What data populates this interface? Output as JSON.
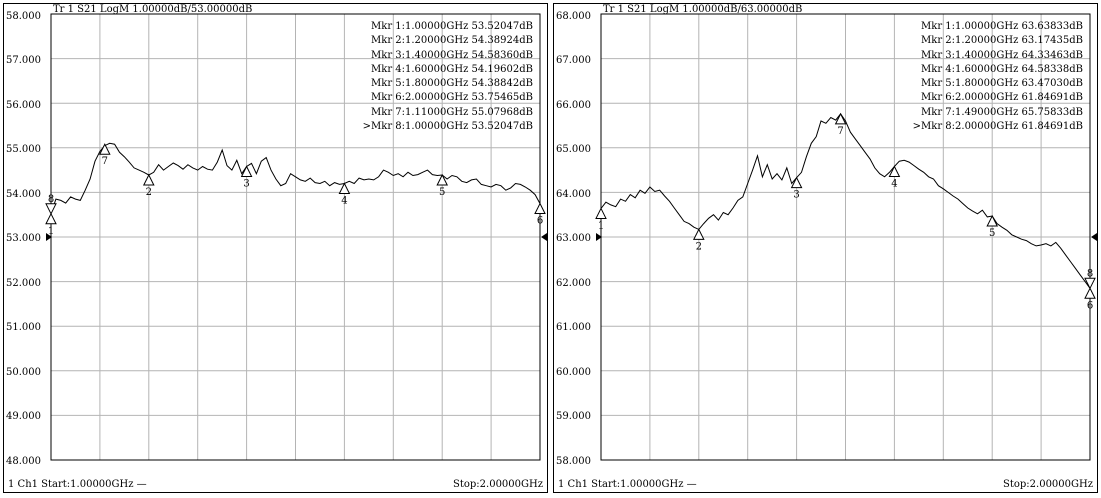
{
  "colors": {
    "trace": "#000000",
    "grid": "#b4b4b4",
    "frame": "#000000",
    "background": "#ffffff"
  },
  "chart_data": [
    {
      "type": "line",
      "header": "Tr 1  S21 LogM 1.00000dB/53.00000dB",
      "ylim": [
        48,
        58
      ],
      "xlim": [
        1.0,
        2.0
      ],
      "x_unit": "GHz",
      "y_unit": "dB",
      "grid": true,
      "yticks": [
        "58.000",
        "57.000",
        "56.000",
        "55.000",
        "54.000",
        "53.000",
        "52.000",
        "51.000",
        "50.000",
        "49.000",
        "48.000"
      ],
      "reference_level": 53.0,
      "footer_left": "1  Ch1  Start:1.00000GHz  —",
      "footer_right": "Stop:2.00000GHz",
      "x": [
        1.0,
        1.01,
        1.02,
        1.03,
        1.04,
        1.05,
        1.06,
        1.07,
        1.08,
        1.09,
        1.1,
        1.11,
        1.12,
        1.13,
        1.14,
        1.15,
        1.16,
        1.17,
        1.18,
        1.19,
        1.2,
        1.21,
        1.22,
        1.23,
        1.24,
        1.25,
        1.26,
        1.27,
        1.28,
        1.29,
        1.3,
        1.31,
        1.32,
        1.33,
        1.34,
        1.35,
        1.36,
        1.37,
        1.38,
        1.39,
        1.4,
        1.41,
        1.42,
        1.43,
        1.44,
        1.45,
        1.46,
        1.47,
        1.48,
        1.49,
        1.5,
        1.51,
        1.52,
        1.53,
        1.54,
        1.55,
        1.56,
        1.57,
        1.58,
        1.59,
        1.6,
        1.61,
        1.62,
        1.63,
        1.64,
        1.65,
        1.66,
        1.67,
        1.68,
        1.69,
        1.7,
        1.71,
        1.72,
        1.73,
        1.74,
        1.75,
        1.76,
        1.77,
        1.78,
        1.79,
        1.8,
        1.81,
        1.82,
        1.83,
        1.84,
        1.85,
        1.86,
        1.87,
        1.88,
        1.89,
        1.9,
        1.91,
        1.92,
        1.93,
        1.94,
        1.95,
        1.96,
        1.97,
        1.98,
        1.99,
        2.0
      ],
      "y": [
        53.52,
        53.85,
        53.82,
        53.76,
        53.9,
        53.85,
        53.82,
        54.05,
        54.3,
        54.7,
        54.92,
        55.05,
        55.1,
        55.08,
        54.9,
        54.8,
        54.68,
        54.55,
        54.5,
        54.45,
        54.39,
        54.45,
        54.62,
        54.5,
        54.58,
        54.66,
        54.6,
        54.52,
        54.62,
        54.55,
        54.5,
        54.58,
        54.52,
        54.5,
        54.68,
        54.95,
        54.6,
        54.5,
        54.72,
        54.42,
        54.58,
        54.65,
        54.42,
        54.7,
        54.78,
        54.5,
        54.3,
        54.15,
        54.2,
        54.42,
        54.35,
        54.28,
        54.25,
        54.32,
        54.22,
        54.2,
        54.25,
        54.15,
        54.22,
        54.18,
        54.2,
        54.25,
        54.2,
        54.32,
        54.28,
        54.3,
        54.28,
        54.35,
        54.5,
        54.45,
        54.38,
        54.42,
        54.35,
        54.45,
        54.38,
        54.4,
        54.45,
        54.5,
        54.4,
        54.38,
        54.39,
        54.3,
        54.38,
        54.35,
        54.25,
        54.22,
        54.28,
        54.3,
        54.18,
        54.15,
        54.12,
        54.18,
        54.15,
        54.05,
        54.1,
        54.2,
        54.18,
        54.12,
        54.05,
        53.95,
        53.75
      ],
      "markers": [
        {
          "num": "1",
          "x": 1.0,
          "y": 53.52,
          "pos": "below"
        },
        {
          "num": "2",
          "x": 1.2,
          "y": 54.39,
          "pos": "below"
        },
        {
          "num": "3",
          "x": 1.4,
          "y": 54.58,
          "pos": "below"
        },
        {
          "num": "4",
          "x": 1.6,
          "y": 54.2,
          "pos": "below"
        },
        {
          "num": "5",
          "x": 1.8,
          "y": 54.39,
          "pos": "below"
        },
        {
          "num": "6",
          "x": 2.0,
          "y": 53.75,
          "pos": "below"
        },
        {
          "num": "7",
          "x": 1.11,
          "y": 55.08,
          "pos": "below"
        },
        {
          "num": "8",
          "x": 1.0,
          "y": 53.52,
          "pos": "above"
        }
      ],
      "marker_table": [
        "Mkr 1:1.00000GHz 53.52047dB",
        "Mkr 2:1.20000GHz 54.38924dB",
        "Mkr 3:1.40000GHz 54.58360dB",
        "Mkr 4:1.60000GHz 54.19602dB",
        "Mkr 5:1.80000GHz 54.38842dB",
        "Mkr 6:2.00000GHz 53.75465dB",
        "Mkr 7:1.11000GHz 55.07968dB",
        ">Mkr 8:1.00000GHz 53.52047dB"
      ]
    },
    {
      "type": "line",
      "header": "Tr 1  S21 LogM 1.00000dB/63.00000dB",
      "ylim": [
        58,
        68
      ],
      "xlim": [
        1.0,
        2.0
      ],
      "x_unit": "GHz",
      "y_unit": "dB",
      "grid": true,
      "yticks": [
        "68.000",
        "67.000",
        "66.000",
        "65.000",
        "64.000",
        "63.000",
        "62.000",
        "61.000",
        "60.000",
        "59.000",
        "58.000"
      ],
      "reference_level": 63.0,
      "footer_left": "1  Ch1  Start:1.00000GHz  —",
      "footer_right": "Stop:2.00000GHz",
      "x": [
        1.0,
        1.01,
        1.02,
        1.03,
        1.04,
        1.05,
        1.06,
        1.07,
        1.08,
        1.09,
        1.1,
        1.11,
        1.12,
        1.13,
        1.14,
        1.15,
        1.16,
        1.17,
        1.18,
        1.19,
        1.2,
        1.21,
        1.22,
        1.23,
        1.24,
        1.25,
        1.26,
        1.27,
        1.28,
        1.29,
        1.3,
        1.31,
        1.32,
        1.33,
        1.34,
        1.35,
        1.36,
        1.37,
        1.38,
        1.39,
        1.4,
        1.41,
        1.42,
        1.43,
        1.44,
        1.45,
        1.46,
        1.47,
        1.48,
        1.49,
        1.5,
        1.51,
        1.52,
        1.53,
        1.54,
        1.55,
        1.56,
        1.57,
        1.58,
        1.59,
        1.6,
        1.61,
        1.62,
        1.63,
        1.64,
        1.65,
        1.66,
        1.67,
        1.68,
        1.69,
        1.7,
        1.71,
        1.72,
        1.73,
        1.74,
        1.75,
        1.76,
        1.77,
        1.78,
        1.79,
        1.8,
        1.81,
        1.82,
        1.83,
        1.84,
        1.85,
        1.86,
        1.87,
        1.88,
        1.89,
        1.9,
        1.91,
        1.92,
        1.93,
        1.94,
        1.95,
        1.96,
        1.97,
        1.98,
        1.99,
        2.0
      ],
      "y": [
        63.64,
        63.78,
        63.72,
        63.68,
        63.85,
        63.8,
        63.95,
        63.88,
        64.05,
        63.98,
        64.12,
        64.02,
        64.05,
        63.92,
        63.8,
        63.65,
        63.5,
        63.35,
        63.3,
        63.22,
        63.17,
        63.3,
        63.42,
        63.5,
        63.38,
        63.55,
        63.5,
        63.65,
        63.82,
        63.9,
        64.2,
        64.5,
        64.82,
        64.35,
        64.62,
        64.3,
        64.42,
        64.28,
        64.55,
        64.2,
        64.33,
        64.45,
        64.8,
        65.1,
        65.25,
        65.6,
        65.55,
        65.68,
        65.62,
        65.76,
        65.6,
        65.35,
        65.2,
        65.05,
        64.9,
        64.75,
        64.55,
        64.42,
        64.35,
        64.45,
        64.58,
        64.7,
        64.72,
        64.68,
        64.6,
        64.52,
        64.45,
        64.35,
        64.3,
        64.15,
        64.08,
        64.0,
        63.92,
        63.85,
        63.75,
        63.65,
        63.58,
        63.52,
        63.6,
        63.45,
        63.47,
        63.3,
        63.22,
        63.15,
        63.05,
        63.0,
        62.95,
        62.92,
        62.85,
        62.8,
        62.82,
        62.85,
        62.8,
        62.88,
        62.75,
        62.6,
        62.45,
        62.3,
        62.15,
        62.0,
        61.85
      ],
      "markers": [
        {
          "num": "1",
          "x": 1.0,
          "y": 63.64,
          "pos": "below"
        },
        {
          "num": "2",
          "x": 1.2,
          "y": 63.17,
          "pos": "below"
        },
        {
          "num": "3",
          "x": 1.4,
          "y": 64.33,
          "pos": "below"
        },
        {
          "num": "4",
          "x": 1.6,
          "y": 64.58,
          "pos": "below"
        },
        {
          "num": "5",
          "x": 1.8,
          "y": 63.47,
          "pos": "below"
        },
        {
          "num": "6",
          "x": 2.0,
          "y": 61.85,
          "pos": "below"
        },
        {
          "num": "7",
          "x": 1.49,
          "y": 65.76,
          "pos": "below"
        },
        {
          "num": "8",
          "x": 2.0,
          "y": 61.85,
          "pos": "above"
        }
      ],
      "marker_table": [
        "Mkr 1:1.00000GHz 63.63833dB",
        "Mkr 2:1.20000GHz 63.17435dB",
        "Mkr 3:1.40000GHz 64.33463dB",
        "Mkr 4:1.60000GHz 64.58338dB",
        "Mkr 5:1.80000GHz 63.47030dB",
        "Mkr 6:2.00000GHz 61.84691dB",
        "Mkr 7:1.49000GHz 65.75833dB",
        ">Mkr 8:2.00000GHz 61.84691dB"
      ]
    }
  ]
}
